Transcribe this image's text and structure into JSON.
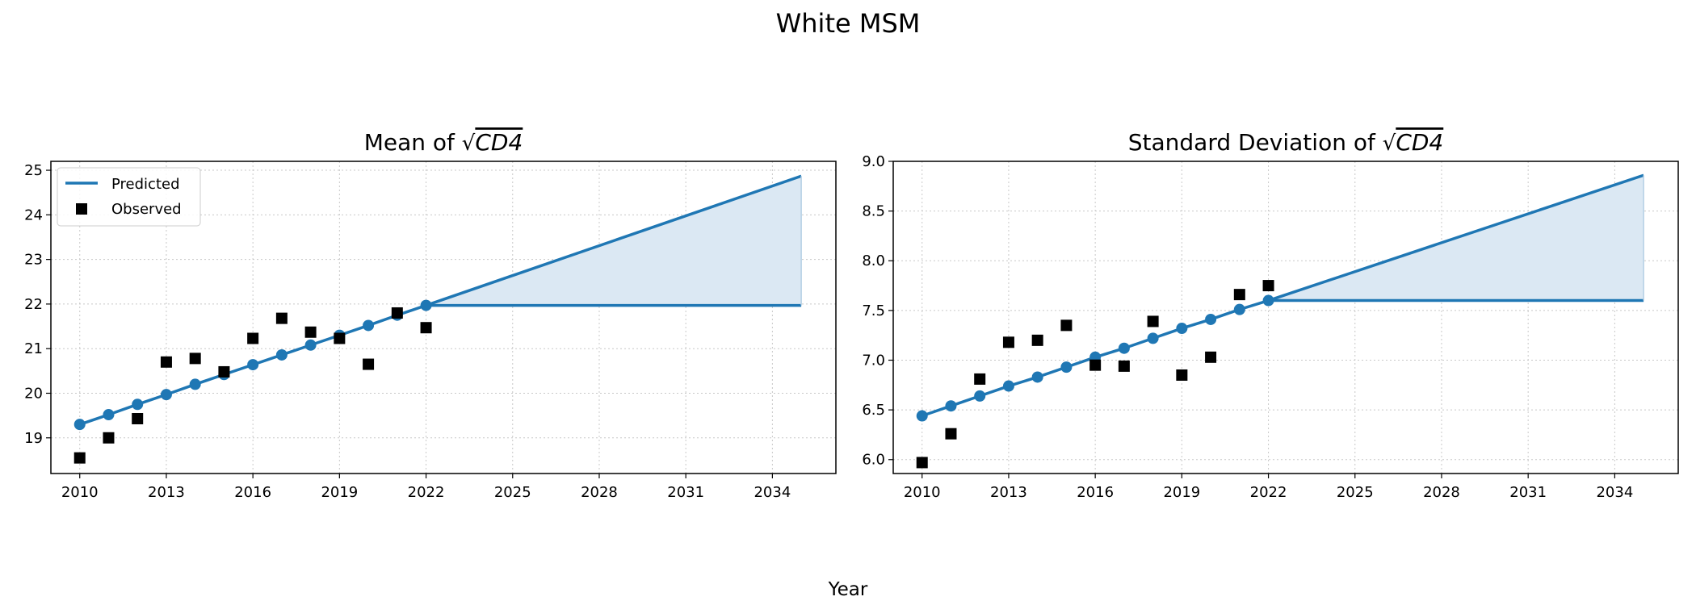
{
  "figure": {
    "suptitle": "White MSM",
    "xlabel": "Year"
  },
  "legend": {
    "predicted": "Predicted",
    "observed": "Observed",
    "placement": "upper-left"
  },
  "colors": {
    "predicted": "#1f77b4",
    "band": "#dbe8f3",
    "observed": "#000000",
    "grid": "#c8c8c8"
  },
  "chart_data": [
    {
      "type": "line",
      "title_prefix": "Mean of ",
      "title_math": "CD4",
      "grid": true,
      "xlim": [
        2009,
        2036.2
      ],
      "ylim": [
        18.2,
        25.2
      ],
      "xticks": [
        2010,
        2013,
        2016,
        2019,
        2022,
        2025,
        2028,
        2031,
        2034
      ],
      "yticks": [
        19,
        20,
        21,
        22,
        23,
        24,
        25
      ],
      "ytick_decimals": 0,
      "series": [
        {
          "name": "Predicted",
          "x": [
            2010,
            2011,
            2012,
            2013,
            2014,
            2015,
            2016,
            2017,
            2018,
            2019,
            2020,
            2021,
            2022
          ],
          "y": [
            19.3,
            19.52,
            19.75,
            19.97,
            20.2,
            20.42,
            20.64,
            20.86,
            21.08,
            21.3,
            21.52,
            21.75,
            21.97
          ]
        },
        {
          "name": "Observed",
          "x": [
            2010,
            2011,
            2012,
            2013,
            2014,
            2015,
            2016,
            2017,
            2018,
            2019,
            2020,
            2021,
            2022
          ],
          "y": [
            18.55,
            19.0,
            19.43,
            20.7,
            20.78,
            20.48,
            21.23,
            21.68,
            21.37,
            21.23,
            20.65,
            21.8,
            21.47
          ]
        }
      ],
      "projection": {
        "x": [
          2022,
          2035
        ],
        "upper": [
          21.97,
          24.87
        ],
        "lower": [
          21.97,
          21.97
        ]
      }
    },
    {
      "type": "line",
      "title_prefix": "Standard Deviation of ",
      "title_math": "CD4",
      "grid": true,
      "xlim": [
        2009,
        2036.2
      ],
      "ylim": [
        5.86,
        9.0
      ],
      "xticks": [
        2010,
        2013,
        2016,
        2019,
        2022,
        2025,
        2028,
        2031,
        2034
      ],
      "yticks": [
        6.0,
        6.5,
        7.0,
        7.5,
        8.0,
        8.5,
        9.0
      ],
      "ytick_decimals": 1,
      "series": [
        {
          "name": "Predicted",
          "x": [
            2010,
            2011,
            2012,
            2013,
            2014,
            2015,
            2016,
            2017,
            2018,
            2019,
            2020,
            2021,
            2022
          ],
          "y": [
            6.44,
            6.54,
            6.64,
            6.74,
            6.83,
            6.93,
            7.03,
            7.12,
            7.22,
            7.32,
            7.41,
            7.51,
            7.6
          ]
        },
        {
          "name": "Observed",
          "x": [
            2010,
            2011,
            2012,
            2013,
            2014,
            2015,
            2016,
            2017,
            2018,
            2019,
            2020,
            2021,
            2022
          ],
          "y": [
            5.97,
            6.26,
            6.81,
            7.18,
            7.2,
            7.35,
            6.95,
            6.94,
            7.39,
            6.85,
            7.03,
            7.66,
            7.75
          ]
        }
      ],
      "projection": {
        "x": [
          2022,
          2035
        ],
        "upper": [
          7.6,
          8.86
        ],
        "lower": [
          7.6,
          7.6
        ]
      }
    }
  ]
}
